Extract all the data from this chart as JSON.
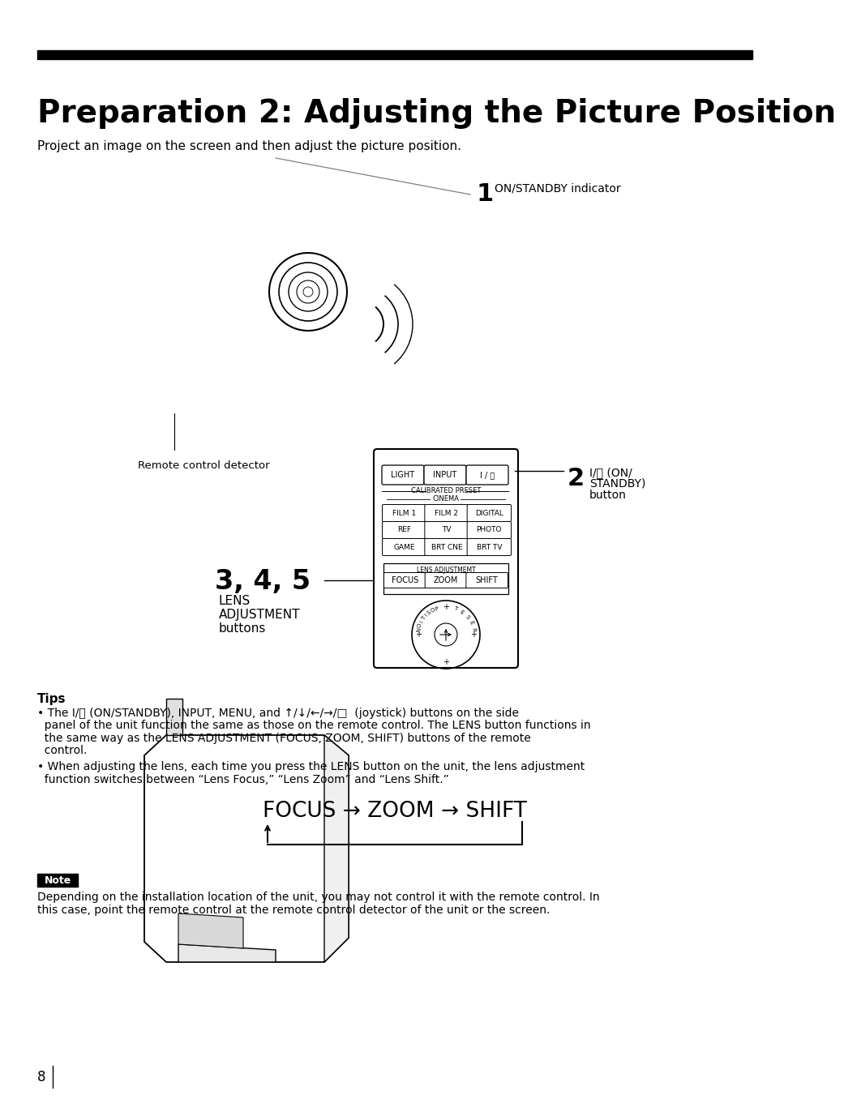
{
  "title": "Preparation 2: Adjusting the Picture Position",
  "subtitle": "Project an image on the screen and then adjust the picture position.",
  "bg_color": "#ffffff",
  "text_color": "#000000",
  "title_bar_color": "#000000",
  "page_number": "8",
  "tips_header": "Tips",
  "tip1_line1": "• The I/⏻ (ON/STANDBY), INPUT, MENU, and ↑/↓/←/→/□  (joystick) buttons on the side",
  "tip1_line2": "  panel of the unit function the same as those on the remote control. The LENS button functions in",
  "tip1_line3": "  the same way as the LENS ADJUSTMENT (FOCUS, ZOOM, SHIFT) buttons of the remote",
  "tip1_line4": "  control.",
  "tip2_line1": "• When adjusting the lens, each time you press the LENS button on the unit, the lens adjustment",
  "tip2_line2": "  function switches between “Lens Focus,” “Lens Zoom” and “Lens Shift.”",
  "focus_zoom_shift": "FOCUS → ZOOM → SHIFT",
  "note_header": "Note",
  "note_line1": "Depending on the installation location of the unit, you may not control it with the remote control. In",
  "note_line2": "this case, point the remote control at the remote control detector of the unit or the screen.",
  "label1_num": "1",
  "label1_text": "ON/STANDBY indicator",
  "label2_num": "2",
  "label2_text_line1": "I/⏻ (ON/",
  "label2_text_line2": "STANDBY)",
  "label2_text_line3": "button",
  "label3_num": "3, 4, 5",
  "label3_text_line1": "LENS",
  "label3_text_line2": "ADJUSTMENT",
  "label3_text_line3": "buttons",
  "remote_detector_label": "Remote control detector"
}
